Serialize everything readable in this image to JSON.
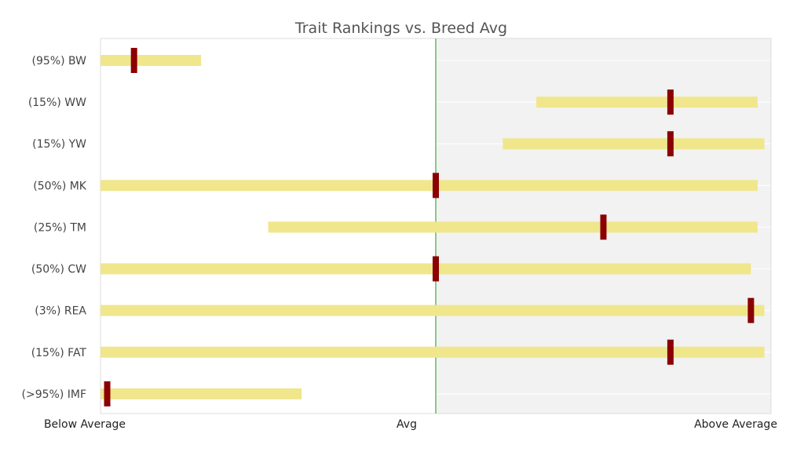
{
  "chart_data": {
    "type": "bar",
    "orientation": "horizontal",
    "title": "Trait Rankings vs. Breed Avg",
    "x_range": [
      0,
      1
    ],
    "x_ticks": [
      {
        "value": 0,
        "label": "Below Average"
      },
      {
        "value": 0.5,
        "label": "Avg"
      },
      {
        "value": 1,
        "label": "Above Average"
      }
    ],
    "reference_line": 0.5,
    "categories": [
      "(95%) BW",
      "(15%) WW",
      "(15%) YW",
      "(50%) MK",
      "(25%) TM",
      "(50%) CW",
      "(3%) REA",
      "(15%) FAT",
      "(>95%) IMF"
    ],
    "series": [
      {
        "role": "range_start",
        "values": [
          0.0,
          0.65,
          0.6,
          0.0,
          0.25,
          0.0,
          0.0,
          0.0,
          0.0
        ]
      },
      {
        "role": "range_end",
        "values": [
          0.15,
          0.98,
          0.99,
          0.98,
          0.98,
          0.97,
          0.99,
          0.99,
          0.3
        ]
      },
      {
        "role": "marker",
        "values": [
          0.05,
          0.85,
          0.85,
          0.5,
          0.75,
          0.5,
          0.97,
          0.85,
          0.01
        ]
      }
    ],
    "colors": {
      "range_bar": "#f0e68c",
      "marker": "#8b0000",
      "reference_line": "#4caf50",
      "right_half_background": "#f2f2f2",
      "axis_frame": "#dddddd",
      "text": "#444444"
    },
    "grid": false
  }
}
